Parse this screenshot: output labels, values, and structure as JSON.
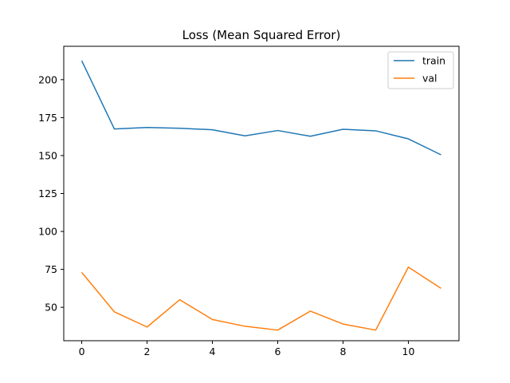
{
  "chart_data": {
    "type": "line",
    "title": "Loss (Mean Squared Error)",
    "xlabel": "",
    "ylabel": "",
    "x": [
      0,
      1,
      2,
      3,
      4,
      5,
      6,
      7,
      8,
      9,
      10,
      11
    ],
    "xlim": [
      -0.55,
      11.55
    ],
    "ylim": [
      28,
      222
    ],
    "xticks": [
      0,
      2,
      4,
      6,
      8,
      10
    ],
    "yticks": [
      50,
      75,
      100,
      125,
      150,
      175,
      200
    ],
    "grid": false,
    "legend_position": "top-right",
    "series": [
      {
        "name": "train",
        "color": "#1f77b4",
        "values": [
          212.5,
          167.5,
          168.5,
          168,
          167,
          163,
          166.5,
          162.7,
          167.3,
          166.3,
          161,
          150.5
        ]
      },
      {
        "name": "val",
        "color": "#ff7f0e",
        "values": [
          73,
          47,
          37,
          55,
          42,
          37.5,
          35,
          47.5,
          39,
          35,
          76.5,
          62.5
        ]
      }
    ]
  }
}
